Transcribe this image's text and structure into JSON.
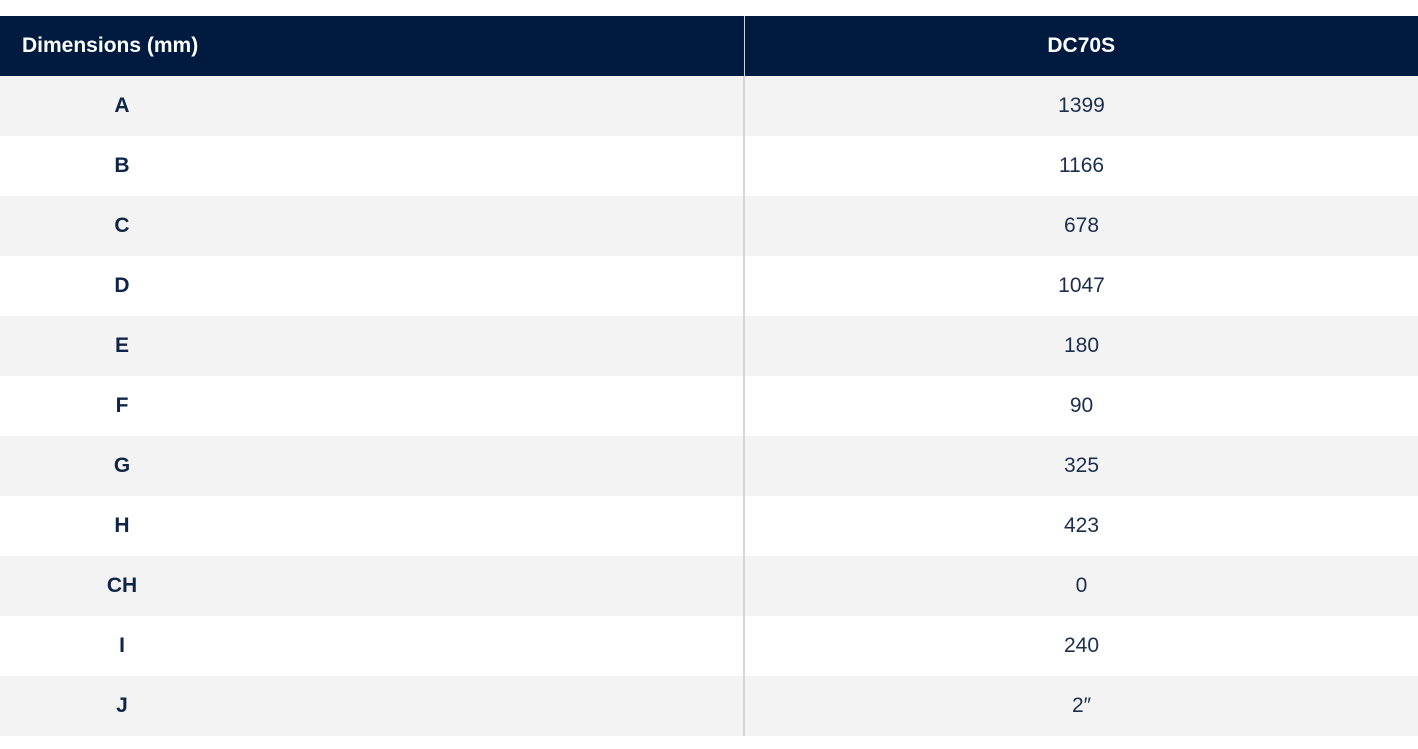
{
  "table": {
    "headers": [
      "Dimensions (mm)",
      "DC70S"
    ],
    "rows": [
      {
        "dim": "A",
        "value": "1399"
      },
      {
        "dim": "B",
        "value": "1166"
      },
      {
        "dim": "C",
        "value": "678"
      },
      {
        "dim": "D",
        "value": "1047"
      },
      {
        "dim": "E",
        "value": "180"
      },
      {
        "dim": "F",
        "value": "90"
      },
      {
        "dim": "G",
        "value": "325"
      },
      {
        "dim": "H",
        "value": "423"
      },
      {
        "dim": "CH",
        "value": "0"
      },
      {
        "dim": "I",
        "value": "240"
      },
      {
        "dim": "J",
        "value": "2″"
      }
    ]
  },
  "colors": {
    "header_bg": "#001b3f",
    "header_text": "#ffffff",
    "row_alt": "#f3f3f3",
    "text": "#0f2547"
  }
}
